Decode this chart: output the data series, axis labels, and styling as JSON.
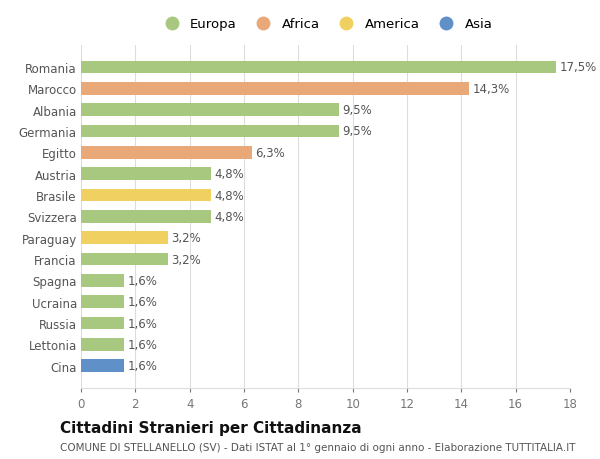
{
  "categories": [
    "Cina",
    "Lettonia",
    "Russia",
    "Ucraina",
    "Spagna",
    "Francia",
    "Paraguay",
    "Svizzera",
    "Brasile",
    "Austria",
    "Egitto",
    "Germania",
    "Albania",
    "Marocco",
    "Romania"
  ],
  "values": [
    1.6,
    1.6,
    1.6,
    1.6,
    1.6,
    3.2,
    3.2,
    4.8,
    4.8,
    4.8,
    6.3,
    9.5,
    9.5,
    14.3,
    17.5
  ],
  "labels": [
    "1,6%",
    "1,6%",
    "1,6%",
    "1,6%",
    "1,6%",
    "3,2%",
    "3,2%",
    "4,8%",
    "4,8%",
    "4,8%",
    "6,3%",
    "9,5%",
    "9,5%",
    "14,3%",
    "17,5%"
  ],
  "continents": [
    "Asia",
    "Europa",
    "Europa",
    "Europa",
    "Europa",
    "Europa",
    "America",
    "Europa",
    "America",
    "Europa",
    "Africa",
    "Europa",
    "Europa",
    "Africa",
    "Europa"
  ],
  "colors": {
    "Europa": "#a8c880",
    "Africa": "#e8a878",
    "America": "#f0d060",
    "Asia": "#6090c8"
  },
  "legend_labels": [
    "Europa",
    "Africa",
    "America",
    "Asia"
  ],
  "legend_colors": [
    "#a8c880",
    "#e8a878",
    "#f0d060",
    "#6090c8"
  ],
  "title": "Cittadini Stranieri per Cittadinanza",
  "subtitle": "COMUNE DI STELLANELLO (SV) - Dati ISTAT al 1° gennaio di ogni anno - Elaborazione TUTTITALIA.IT",
  "xlim": [
    0,
    18
  ],
  "xticks": [
    0,
    2,
    4,
    6,
    8,
    10,
    12,
    14,
    16,
    18
  ],
  "background_color": "#ffffff",
  "grid_color": "#dddddd",
  "bar_height": 0.6,
  "label_fontsize": 8.5,
  "title_fontsize": 11,
  "subtitle_fontsize": 7.5,
  "ytick_fontsize": 8.5,
  "xtick_fontsize": 8.5
}
